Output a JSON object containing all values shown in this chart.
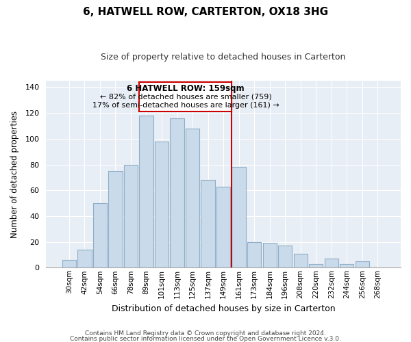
{
  "title": "6, HATWELL ROW, CARTERTON, OX18 3HG",
  "subtitle": "Size of property relative to detached houses in Carterton",
  "xlabel": "Distribution of detached houses by size in Carterton",
  "ylabel": "Number of detached properties",
  "footer_line1": "Contains HM Land Registry data © Crown copyright and database right 2024.",
  "footer_line2": "Contains public sector information licensed under the Open Government Licence v.3.0.",
  "bar_labels": [
    "30sqm",
    "42sqm",
    "54sqm",
    "66sqm",
    "78sqm",
    "89sqm",
    "101sqm",
    "113sqm",
    "125sqm",
    "137sqm",
    "149sqm",
    "161sqm",
    "173sqm",
    "184sqm",
    "196sqm",
    "208sqm",
    "220sqm",
    "232sqm",
    "244sqm",
    "256sqm",
    "268sqm"
  ],
  "bar_values": [
    6,
    14,
    50,
    75,
    80,
    118,
    98,
    116,
    108,
    68,
    63,
    78,
    20,
    19,
    17,
    11,
    3,
    7,
    3,
    5,
    0
  ],
  "bar_color": "#c9daea",
  "bar_edge_color": "#8faec8",
  "vline_color": "#cc0000",
  "vline_index": 11,
  "annotation_title": "6 HATWELL ROW: 159sqm",
  "annotation_line1": "← 82% of detached houses are smaller (759)",
  "annotation_line2": "17% of semi-detached houses are larger (161) →",
  "annotation_box_facecolor": "#ffffff",
  "annotation_box_edgecolor": "#cc0000",
  "bg_color": "#e8eef5",
  "ylim": [
    0,
    145
  ],
  "yticks": [
    0,
    20,
    40,
    60,
    80,
    100,
    120,
    140
  ],
  "grid_color": "#ffffff",
  "title_fontsize": 11,
  "subtitle_fontsize": 9
}
